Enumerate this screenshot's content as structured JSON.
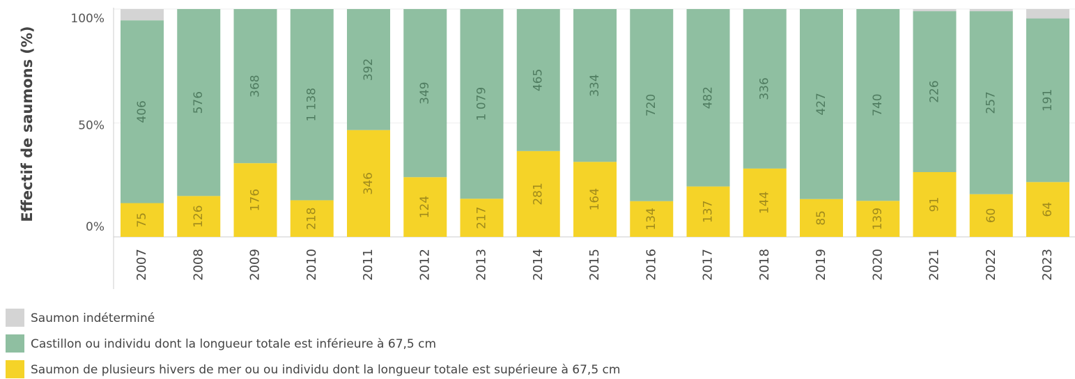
{
  "chart_data": {
    "type": "bar",
    "stack": "percent",
    "y_label": "Effectif de saumons (%)",
    "categories": [
      "2007",
      "2008",
      "2009",
      "2010",
      "2011",
      "2012",
      "2013",
      "2014",
      "2015",
      "2016",
      "2017",
      "2018",
      "2019",
      "2020",
      "2021",
      "2022",
      "2023"
    ],
    "series": [
      {
        "name": "Saumon indéterminé",
        "color": "#d4d4d4",
        "values": [
          25,
          0,
          0,
          0,
          0,
          0,
          0,
          0,
          0,
          0,
          0,
          0,
          0,
          0,
          3,
          3,
          11
        ]
      },
      {
        "name": "Castillon ou individu dont la longueur totale est inférieure à  67,5 cm",
        "color": "#8fbfa1",
        "values": [
          406,
          576,
          368,
          1138,
          392,
          349,
          1079,
          465,
          334,
          720,
          482,
          336,
          427,
          740,
          226,
          257,
          191
        ],
        "value_labels": [
          "406",
          "576",
          "368",
          "1 138",
          "392",
          "349",
          "1 079",
          "465",
          "334",
          "720",
          "482",
          "336",
          "427",
          "740",
          "226",
          "257",
          "191"
        ]
      },
      {
        "name": "Saumon de plusieurs hivers de mer ou ou individu dont la longueur totale est supérieure à  67,5 cm",
        "color": "#f5d328",
        "values": [
          75,
          126,
          176,
          218,
          346,
          124,
          217,
          281,
          164,
          134,
          137,
          144,
          85,
          139,
          91,
          60,
          64
        ]
      }
    ],
    "ylim": [
      0,
      100
    ],
    "yticks": [
      {
        "value": 0,
        "label": "0%"
      },
      {
        "value": 50,
        "label": "50%"
      },
      {
        "value": 100,
        "label": "100%"
      }
    ],
    "grid": true
  }
}
